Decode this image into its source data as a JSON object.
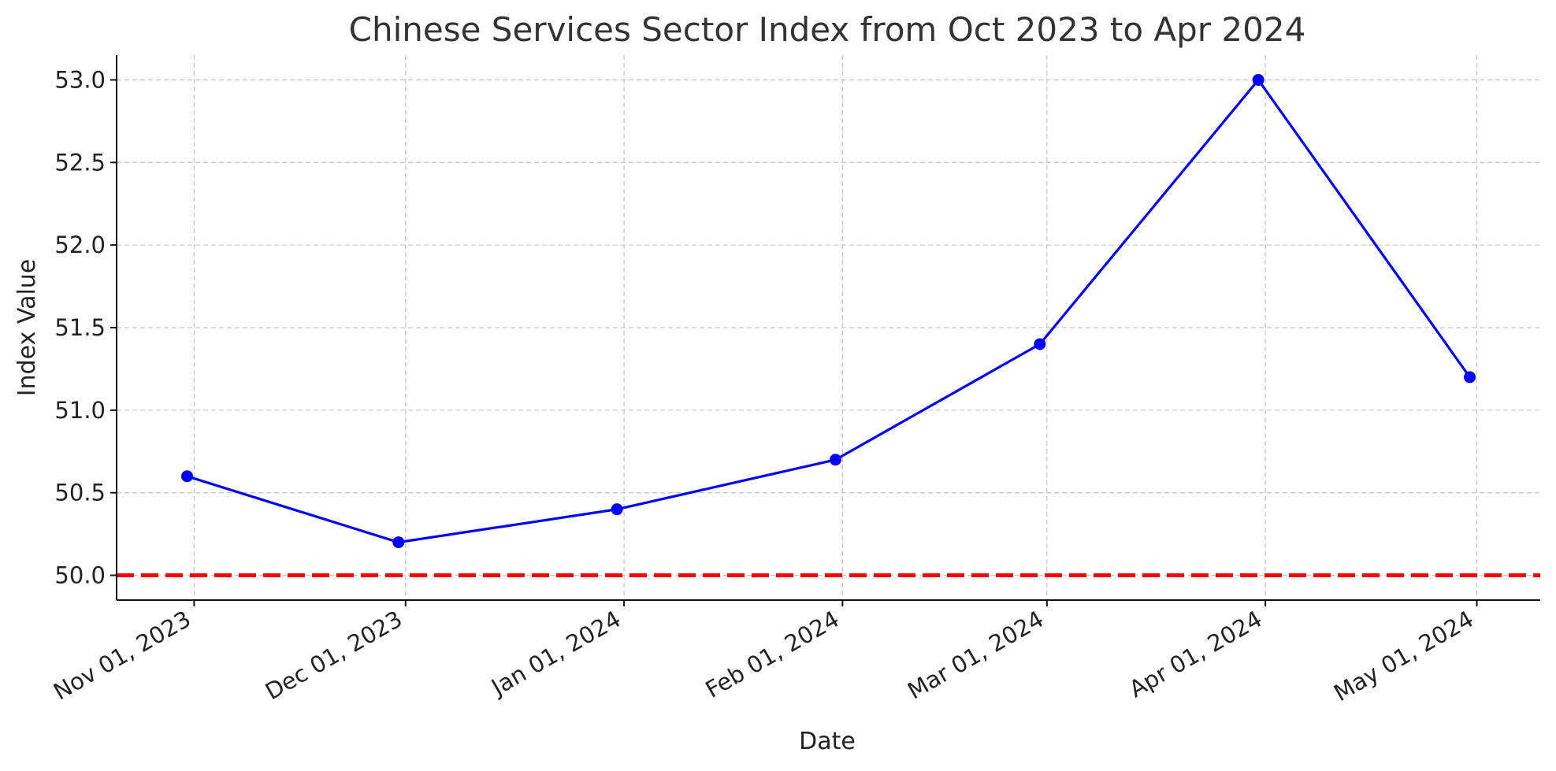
{
  "chart_data": {
    "type": "line",
    "title": "Chinese Services Sector Index from Oct 2023 to Apr 2024",
    "xlabel": "Date",
    "ylabel": "Index Value",
    "x": [
      "2023-10-31",
      "2023-11-30",
      "2023-12-31",
      "2024-01-31",
      "2024-02-29",
      "2024-03-31",
      "2024-04-30"
    ],
    "x_ticks": [
      {
        "date": "2023-11-01",
        "label": "Nov 01, 2023"
      },
      {
        "date": "2023-12-01",
        "label": "Dec 01, 2023"
      },
      {
        "date": "2024-01-01",
        "label": "Jan 01, 2024"
      },
      {
        "date": "2024-02-01",
        "label": "Feb 01, 2024"
      },
      {
        "date": "2024-03-01",
        "label": "Mar 01, 2024"
      },
      {
        "date": "2024-04-01",
        "label": "Apr 01, 2024"
      },
      {
        "date": "2024-05-01",
        "label": "May 01, 2024"
      }
    ],
    "xlim": [
      "2023-10-21",
      "2024-05-10"
    ],
    "series": [
      {
        "values": [
          50.6,
          50.2,
          50.4,
          50.7,
          51.4,
          53.0,
          51.2
        ],
        "color": "#0000ff",
        "marker": "circle"
      }
    ],
    "y_ticks": [
      "50.0",
      "50.5",
      "51.0",
      "51.5",
      "52.0",
      "52.5",
      "53.0"
    ],
    "ylim": [
      49.85,
      53.15
    ],
    "reference_line": {
      "y": 50.0,
      "color": "#ff0000",
      "style": "dashed"
    },
    "grid": true
  }
}
